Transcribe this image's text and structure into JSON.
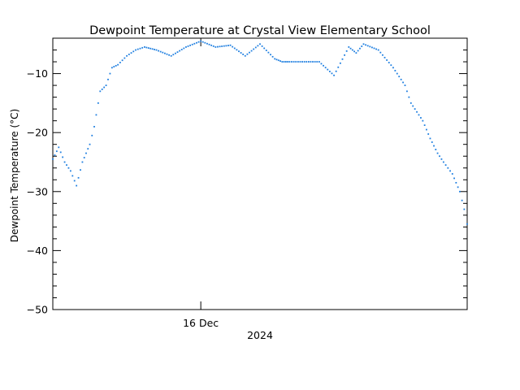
{
  "chart_data": {
    "type": "scatter",
    "title": "Dewpoint Temperature at Crystal View Elementary School",
    "ylabel": "Dewpoint Temperature (°C)",
    "x_tick_labels": [
      "16 Dec"
    ],
    "x_sublabel": "2024",
    "x_range_days": [
      -1.0,
      1.8
    ],
    "ylim": [
      -50,
      -4
    ],
    "y_ticks": [
      -50,
      -40,
      -30,
      -20,
      -10
    ],
    "y_tick_labels": [
      "−50",
      "−40",
      "−30",
      "−20",
      "−10"
    ],
    "grid": false,
    "legend": "none",
    "series": [
      {
        "color": "#1f7fe0",
        "x_days": [
          -1.0,
          -0.96,
          -0.92,
          -0.88,
          -0.84,
          -0.8,
          -0.75,
          -0.72,
          -0.68,
          -0.64,
          -0.6,
          -0.56,
          -0.5,
          -0.44,
          -0.38,
          -0.3,
          -0.2,
          -0.1,
          0.0,
          0.1,
          0.2,
          0.3,
          0.4,
          0.5,
          0.55,
          0.6,
          0.7,
          0.8,
          0.9,
          1.0,
          1.05,
          1.1,
          1.2,
          1.3,
          1.38,
          1.42,
          1.5,
          1.55,
          1.6,
          1.64,
          1.7,
          1.75,
          1.78,
          1.8
        ],
        "y_dewpoint_c": [
          -24.5,
          -22.5,
          -25.0,
          -26.5,
          -29.0,
          -25.0,
          -22.0,
          -19.0,
          -13.0,
          -12.0,
          -9.0,
          -8.5,
          -7.0,
          -6.0,
          -5.5,
          -6.0,
          -7.0,
          -5.5,
          -4.5,
          -5.5,
          -5.2,
          -7.0,
          -5.0,
          -7.5,
          -8.0,
          -8.0,
          -8.0,
          -8.0,
          -10.3,
          -5.5,
          -6.5,
          -5.0,
          -6.0,
          -9.0,
          -12.0,
          -15.0,
          -18.0,
          -21.0,
          -23.5,
          -25.0,
          -27.0,
          -30.0,
          -33.0,
          -35.5
        ]
      }
    ]
  }
}
